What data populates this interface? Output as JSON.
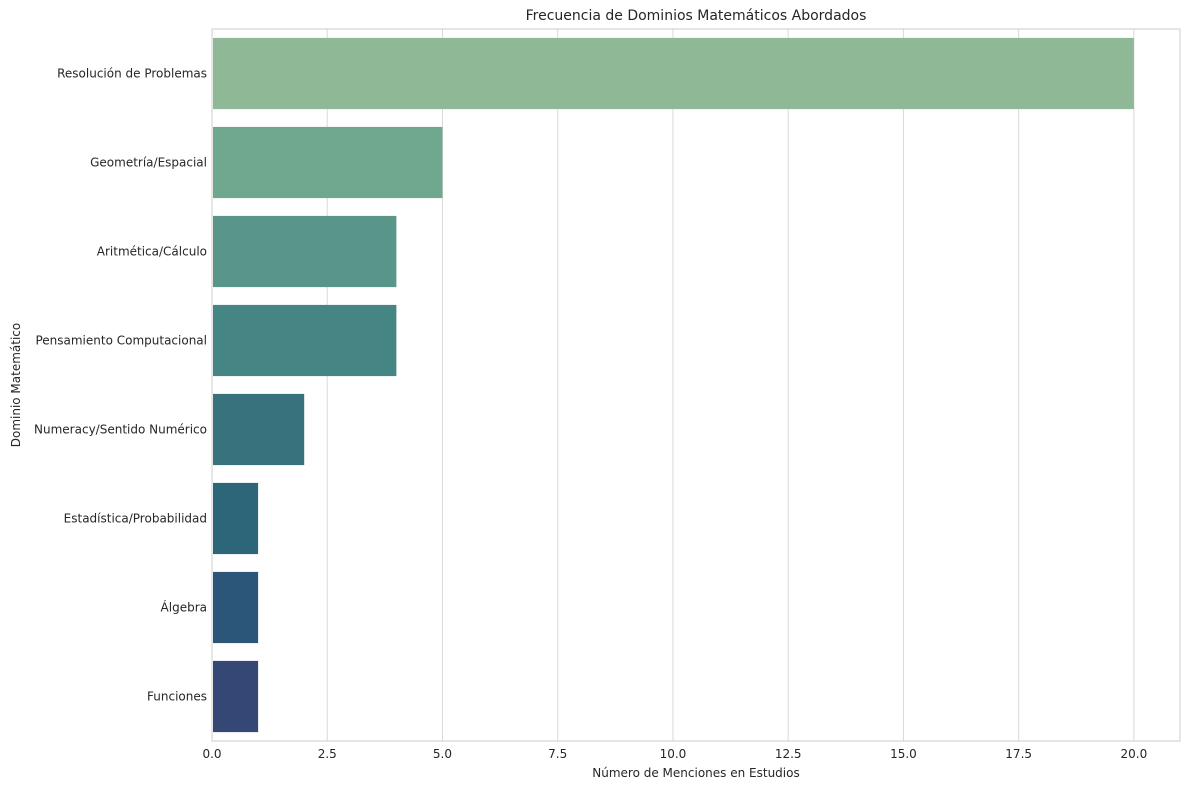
{
  "chart_data": {
    "type": "bar",
    "orientation": "horizontal",
    "title": "Frecuencia de Dominios Matemáticos Abordados",
    "xlabel": "Número de Menciones en Estudios",
    "ylabel": "Dominio Matemático",
    "xlim": [
      0,
      21
    ],
    "xticks": [
      0,
      2.5,
      5,
      7.5,
      10,
      12.5,
      15,
      17.5,
      20
    ],
    "xtick_labels": [
      "0.0",
      "2.5",
      "5.0",
      "7.5",
      "10.0",
      "12.5",
      "15.0",
      "17.5",
      "20.0"
    ],
    "grid": "vertical",
    "categories": [
      "Resolución de Problemas",
      "Geometría/Espacial",
      "Aritmética/Cálculo",
      "Pensamiento Computacional",
      "Numeracy/Sentido Numérico",
      "Estadística/Probabilidad",
      "Álgebra",
      "Funciones"
    ],
    "values": [
      20,
      5,
      4,
      4,
      2,
      1,
      1,
      1
    ],
    "colors": [
      "#8fb996",
      "#70a88f",
      "#5a9589",
      "#458584",
      "#37727d",
      "#2e6679",
      "#2c5679",
      "#344775"
    ]
  }
}
